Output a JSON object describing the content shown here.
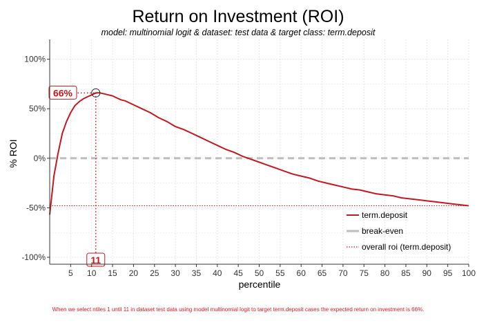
{
  "chart_data": {
    "type": "line",
    "title": "Return on Investment (ROI)",
    "subtitle": "model: multinomial logit  &  dataset: test data  &  target class: term.deposit",
    "xlabel": "percentile",
    "ylabel": "% ROI",
    "xlim": [
      0,
      100
    ],
    "ylim": [
      -107,
      120
    ],
    "x_ticks": [
      5,
      10,
      15,
      20,
      25,
      30,
      35,
      40,
      45,
      50,
      55,
      60,
      65,
      70,
      75,
      80,
      85,
      90,
      95,
      100
    ],
    "y_ticks": [
      {
        "value": 100,
        "label": "100%"
      },
      {
        "value": 50,
        "label": "50%"
      },
      {
        "value": 0,
        "label": "0%"
      },
      {
        "value": -50,
        "label": "-50%"
      },
      {
        "value": -100,
        "label": "-100%"
      }
    ],
    "grid": true,
    "legend_position": "bottom-right",
    "series": [
      {
        "name": "term.deposit",
        "color": "#c8161d",
        "style": "solid",
        "x": [
          0,
          1,
          2,
          3,
          4,
          5,
          6,
          7,
          8,
          9,
          10,
          11,
          12,
          13,
          14,
          15,
          16,
          17,
          18,
          19,
          20,
          22,
          24,
          26,
          28,
          30,
          32,
          34,
          36,
          38,
          40,
          42,
          44,
          46,
          48,
          50,
          52,
          54,
          56,
          58,
          60,
          62,
          64,
          66,
          68,
          70,
          72,
          74,
          76,
          78,
          80,
          82,
          84,
          86,
          88,
          90,
          92,
          94,
          96,
          98,
          100
        ],
        "values": [
          -57,
          -18,
          5,
          25,
          37,
          46,
          53,
          57,
          60,
          62,
          64,
          66,
          66,
          65,
          64,
          63,
          61,
          59,
          58,
          56,
          54,
          50,
          46,
          41,
          37,
          32,
          29,
          25,
          21,
          17,
          13,
          9,
          6,
          2,
          -1,
          -4,
          -7,
          -10,
          -13,
          -16,
          -18,
          -20,
          -23,
          -25,
          -27,
          -29,
          -31,
          -32,
          -34,
          -36,
          -37,
          -38,
          -40,
          -41,
          -42,
          -43,
          -44,
          -45,
          -46,
          -47,
          -48
        ]
      },
      {
        "name": "break-even",
        "color": "#bdbdbd",
        "style": "dashed",
        "y": 0
      },
      {
        "name": "overall roi (term.deposit)",
        "color": "#c8161d",
        "style": "dotted",
        "y": -48
      }
    ],
    "annotations": [
      {
        "type": "marker",
        "x": 11,
        "y": 66,
        "label": "66%",
        "color": "#c8161d"
      },
      {
        "type": "marker-x",
        "x": 11,
        "label": "11",
        "color": "#c8161d"
      }
    ],
    "caption": "When we select ntiles 1 until 11 in dataset test data using model multinomial logit to target term.deposit cases the expected return on investment is 66%.",
    "caption_color": "#e41a1c"
  }
}
